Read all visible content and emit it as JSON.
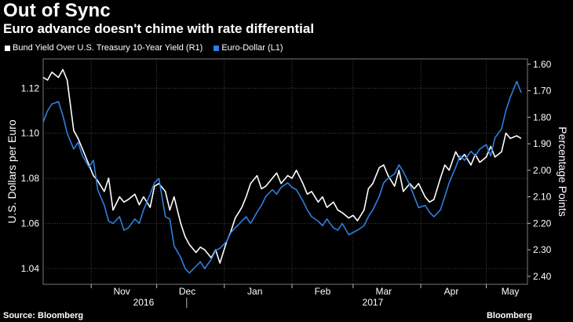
{
  "header": {
    "title": "Out of Sync",
    "subtitle": "Euro advance doesn't chime with rate differential"
  },
  "legend": [
    {
      "label": "Bund Yield Over U.S. Treasury 10-Year Yield (R1)",
      "color": "#ffffff"
    },
    {
      "label": "Euro-Dollar (L1)",
      "color": "#2f7fe0"
    }
  ],
  "footer": {
    "source": "Source: Bloomberg",
    "brand": "Bloomberg"
  },
  "chart_data": {
    "type": "line",
    "ylabel_left": "U.S. Dollars per Euro",
    "ylabel_right": "Percentage Points",
    "ylim_left": [
      1.033,
      1.133
    ],
    "yticks_left": [
      "1.12",
      "1.10",
      "1.08",
      "1.06",
      "1.04"
    ],
    "ylim_right": [
      1.58,
      2.43
    ],
    "yticks_right": [
      "1.60",
      "1.70",
      "1.80",
      "1.90",
      "2.00",
      "2.10",
      "2.20",
      "2.30",
      "2.40"
    ],
    "right_axis_inverted": true,
    "x_month_labels": [
      "Nov",
      "Dec",
      "Jan",
      "Feb",
      "Mar",
      "Apr",
      "May"
    ],
    "x_year_labels": [
      "2016",
      "2017"
    ],
    "grid": true,
    "series": [
      {
        "name": "Bund Yield Over U.S. Treasury 10-Year Yield (R1)",
        "axis": "right",
        "color": "#ffffff",
        "points": [
          [
            "2016-10-10",
            1.65
          ],
          [
            "2016-10-12",
            1.66
          ],
          [
            "2016-10-14",
            1.63
          ],
          [
            "2016-10-17",
            1.65
          ],
          [
            "2016-10-19",
            1.62
          ],
          [
            "2016-10-21",
            1.66
          ],
          [
            "2016-10-24",
            1.85
          ],
          [
            "2016-10-26",
            1.88
          ],
          [
            "2016-10-28",
            1.92
          ],
          [
            "2016-10-31",
            1.98
          ],
          [
            "2016-11-02",
            2.02
          ],
          [
            "2016-11-04",
            2.04
          ],
          [
            "2016-11-07",
            2.08
          ],
          [
            "2016-11-09",
            2.03
          ],
          [
            "2016-11-11",
            2.15
          ],
          [
            "2016-11-14",
            2.1
          ],
          [
            "2016-11-16",
            2.12
          ],
          [
            "2016-11-18",
            2.11
          ],
          [
            "2016-11-21",
            2.09
          ],
          [
            "2016-11-23",
            2.13
          ],
          [
            "2016-11-25",
            2.1
          ],
          [
            "2016-11-28",
            2.14
          ],
          [
            "2016-11-30",
            2.06
          ],
          [
            "2016-12-02",
            2.05
          ],
          [
            "2016-12-05",
            2.08
          ],
          [
            "2016-12-07",
            2.15
          ],
          [
            "2016-12-09",
            2.1
          ],
          [
            "2016-12-12",
            2.2
          ],
          [
            "2016-12-14",
            2.25
          ],
          [
            "2016-12-16",
            2.28
          ],
          [
            "2016-12-19",
            2.31
          ],
          [
            "2016-12-21",
            2.29
          ],
          [
            "2016-12-23",
            2.3
          ],
          [
            "2016-12-26",
            2.33
          ],
          [
            "2016-12-28",
            2.3
          ],
          [
            "2016-12-30",
            2.35
          ],
          [
            "2017-01-02",
            2.27
          ],
          [
            "2017-01-04",
            2.23
          ],
          [
            "2017-01-06",
            2.18
          ],
          [
            "2017-01-09",
            2.14
          ],
          [
            "2017-01-11",
            2.1
          ],
          [
            "2017-01-13",
            2.05
          ],
          [
            "2017-01-16",
            2.02
          ],
          [
            "2017-01-18",
            2.07
          ],
          [
            "2017-01-20",
            2.06
          ],
          [
            "2017-01-23",
            2.03
          ],
          [
            "2017-01-25",
            2.01
          ],
          [
            "2017-01-27",
            2.05
          ],
          [
            "2017-01-30",
            2.02
          ],
          [
            "2017-02-01",
            2.03
          ],
          [
            "2017-02-03",
            2.0
          ],
          [
            "2017-02-06",
            2.05
          ],
          [
            "2017-02-08",
            2.09
          ],
          [
            "2017-02-10",
            2.08
          ],
          [
            "2017-02-13",
            2.12
          ],
          [
            "2017-02-15",
            2.1
          ],
          [
            "2017-02-17",
            2.14
          ],
          [
            "2017-02-20",
            2.12
          ],
          [
            "2017-02-22",
            2.15
          ],
          [
            "2017-02-24",
            2.16
          ],
          [
            "2017-02-27",
            2.18
          ],
          [
            "2017-03-01",
            2.17
          ],
          [
            "2017-03-03",
            2.19
          ],
          [
            "2017-03-06",
            2.15
          ],
          [
            "2017-03-08",
            2.07
          ],
          [
            "2017-03-10",
            2.05
          ],
          [
            "2017-03-13",
            1.99
          ],
          [
            "2017-03-15",
            1.98
          ],
          [
            "2017-03-17",
            2.02
          ],
          [
            "2017-03-20",
            2.06
          ],
          [
            "2017-03-22",
            2.0
          ],
          [
            "2017-03-24",
            2.08
          ],
          [
            "2017-03-27",
            2.05
          ],
          [
            "2017-03-29",
            2.07
          ],
          [
            "2017-03-31",
            2.05
          ],
          [
            "2017-04-03",
            2.1
          ],
          [
            "2017-04-05",
            2.12
          ],
          [
            "2017-04-07",
            2.11
          ],
          [
            "2017-04-10",
            2.03
          ],
          [
            "2017-04-12",
            1.98
          ],
          [
            "2017-04-14",
            2.0
          ],
          [
            "2017-04-17",
            1.93
          ],
          [
            "2017-04-19",
            1.96
          ],
          [
            "2017-04-21",
            1.94
          ],
          [
            "2017-04-24",
            1.98
          ],
          [
            "2017-04-26",
            1.94
          ],
          [
            "2017-04-28",
            1.97
          ],
          [
            "2017-05-01",
            1.95
          ],
          [
            "2017-05-03",
            1.91
          ],
          [
            "2017-05-05",
            1.95
          ],
          [
            "2017-05-08",
            1.93
          ],
          [
            "2017-05-10",
            1.86
          ],
          [
            "2017-05-12",
            1.88
          ],
          [
            "2017-05-15",
            1.87
          ],
          [
            "2017-05-17",
            1.88
          ]
        ]
      },
      {
        "name": "Euro-Dollar (L1)",
        "axis": "left",
        "color": "#2f7fe0",
        "points": [
          [
            "2016-10-10",
            1.105
          ],
          [
            "2016-10-12",
            1.11
          ],
          [
            "2016-10-14",
            1.113
          ],
          [
            "2016-10-17",
            1.114
          ],
          [
            "2016-10-19",
            1.108
          ],
          [
            "2016-10-21",
            1.1
          ],
          [
            "2016-10-24",
            1.093
          ],
          [
            "2016-10-26",
            1.096
          ],
          [
            "2016-10-28",
            1.09
          ],
          [
            "2016-10-31",
            1.085
          ],
          [
            "2016-11-02",
            1.088
          ],
          [
            "2016-11-04",
            1.075
          ],
          [
            "2016-11-07",
            1.068
          ],
          [
            "2016-11-09",
            1.061
          ],
          [
            "2016-11-11",
            1.06
          ],
          [
            "2016-11-14",
            1.063
          ],
          [
            "2016-11-16",
            1.057
          ],
          [
            "2016-11-18",
            1.058
          ],
          [
            "2016-11-21",
            1.062
          ],
          [
            "2016-11-23",
            1.06
          ],
          [
            "2016-11-25",
            1.066
          ],
          [
            "2016-11-28",
            1.073
          ],
          [
            "2016-11-30",
            1.078
          ],
          [
            "2016-12-02",
            1.08
          ],
          [
            "2016-12-05",
            1.063
          ],
          [
            "2016-12-07",
            1.062
          ],
          [
            "2016-12-09",
            1.05
          ],
          [
            "2016-12-12",
            1.045
          ],
          [
            "2016-12-14",
            1.04
          ],
          [
            "2016-12-16",
            1.038
          ],
          [
            "2016-12-19",
            1.041
          ],
          [
            "2016-12-21",
            1.043
          ],
          [
            "2016-12-23",
            1.04
          ],
          [
            "2016-12-26",
            1.044
          ],
          [
            "2016-12-28",
            1.048
          ],
          [
            "2016-12-30",
            1.049
          ],
          [
            "2017-01-02",
            1.052
          ],
          [
            "2017-01-04",
            1.056
          ],
          [
            "2017-01-06",
            1.058
          ],
          [
            "2017-01-09",
            1.061
          ],
          [
            "2017-01-11",
            1.063
          ],
          [
            "2017-01-13",
            1.06
          ],
          [
            "2017-01-16",
            1.065
          ],
          [
            "2017-01-18",
            1.068
          ],
          [
            "2017-01-20",
            1.072
          ],
          [
            "2017-01-23",
            1.075
          ],
          [
            "2017-01-25",
            1.073
          ],
          [
            "2017-01-27",
            1.076
          ],
          [
            "2017-01-30",
            1.078
          ],
          [
            "2017-02-01",
            1.076
          ],
          [
            "2017-02-03",
            1.075
          ],
          [
            "2017-02-06",
            1.07
          ],
          [
            "2017-02-08",
            1.066
          ],
          [
            "2017-02-10",
            1.063
          ],
          [
            "2017-02-13",
            1.061
          ],
          [
            "2017-02-15",
            1.059
          ],
          [
            "2017-02-17",
            1.062
          ],
          [
            "2017-02-20",
            1.058
          ],
          [
            "2017-02-22",
            1.057
          ],
          [
            "2017-02-24",
            1.06
          ],
          [
            "2017-02-27",
            1.055
          ],
          [
            "2017-03-01",
            1.056
          ],
          [
            "2017-03-03",
            1.057
          ],
          [
            "2017-03-06",
            1.059
          ],
          [
            "2017-03-08",
            1.063
          ],
          [
            "2017-03-10",
            1.066
          ],
          [
            "2017-03-13",
            1.072
          ],
          [
            "2017-03-15",
            1.078
          ],
          [
            "2017-03-17",
            1.08
          ],
          [
            "2017-03-20",
            1.082
          ],
          [
            "2017-03-22",
            1.086
          ],
          [
            "2017-03-24",
            1.083
          ],
          [
            "2017-03-27",
            1.077
          ],
          [
            "2017-03-29",
            1.072
          ],
          [
            "2017-03-31",
            1.067
          ],
          [
            "2017-04-03",
            1.068
          ],
          [
            "2017-04-05",
            1.065
          ],
          [
            "2017-04-07",
            1.063
          ],
          [
            "2017-04-10",
            1.066
          ],
          [
            "2017-04-12",
            1.072
          ],
          [
            "2017-04-14",
            1.078
          ],
          [
            "2017-04-17",
            1.085
          ],
          [
            "2017-04-19",
            1.09
          ],
          [
            "2017-04-21",
            1.088
          ],
          [
            "2017-04-24",
            1.092
          ],
          [
            "2017-04-26",
            1.09
          ],
          [
            "2017-04-28",
            1.093
          ],
          [
            "2017-05-01",
            1.095
          ],
          [
            "2017-05-03",
            1.09
          ],
          [
            "2017-05-05",
            1.098
          ],
          [
            "2017-05-08",
            1.102
          ],
          [
            "2017-05-10",
            1.11
          ],
          [
            "2017-05-12",
            1.116
          ],
          [
            "2017-05-15",
            1.123
          ],
          [
            "2017-05-17",
            1.118
          ]
        ]
      }
    ]
  }
}
